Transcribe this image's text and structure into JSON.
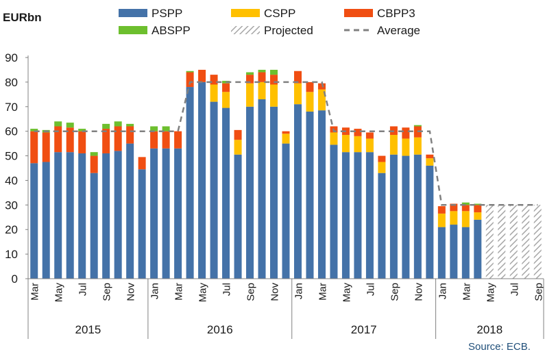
{
  "chart_data": {
    "type": "bar",
    "stacked": true,
    "unit_label": "EURbn",
    "source": "Source: ECB.",
    "ylim": [
      0,
      90
    ],
    "yticks": [
      0,
      10,
      20,
      30,
      40,
      50,
      60,
      70,
      80,
      90
    ],
    "grid": false,
    "legend_position": "top",
    "colors": {
      "PSPP": "#4472a8",
      "CSPP": "#ffc000",
      "CBPP3": "#f04e12",
      "ABSPP": "#6dbf2e",
      "Projected": "#a6a6a6",
      "Average": "#808080"
    },
    "legend": [
      {
        "key": "PSPP",
        "label": "PSPP",
        "kind": "solid"
      },
      {
        "key": "CSPP",
        "label": "CSPP",
        "kind": "solid"
      },
      {
        "key": "CBPP3",
        "label": "CBPP3",
        "kind": "solid"
      },
      {
        "key": "ABSPP",
        "label": "ABSPP",
        "kind": "solid"
      },
      {
        "key": "Projected",
        "label": "Projected",
        "kind": "hatch"
      },
      {
        "key": "Average",
        "label": "Average",
        "kind": "dash"
      }
    ],
    "categories": [
      "Mar",
      "Apr",
      "May",
      "Jun",
      "Jul",
      "Aug",
      "Sep",
      "Oct",
      "Nov",
      "Dec",
      "Jan",
      "Feb",
      "Mar",
      "Apr",
      "May",
      "Jun",
      "Jul",
      "Aug",
      "Sep",
      "Oct",
      "Nov",
      "Dec",
      "Jan",
      "Feb",
      "Mar",
      "Apr",
      "May",
      "Jun",
      "Jul",
      "Aug",
      "Sep",
      "Oct",
      "Nov",
      "Dec",
      "Jan",
      "Feb",
      "Mar",
      "Apr",
      "May",
      "Jun",
      "Jul",
      "Aug",
      "Sep"
    ],
    "tick_labels": [
      "Mar",
      "",
      "May",
      "",
      "Jul",
      "",
      "Sep",
      "",
      "Nov",
      "",
      "Jan",
      "",
      "Mar",
      "",
      "May",
      "",
      "Jul",
      "",
      "Sep",
      "",
      "Nov",
      "",
      "Jan",
      "",
      "Mar",
      "",
      "May",
      "",
      "Jul",
      "",
      "Sep",
      "",
      "Nov",
      "",
      "Jan",
      "",
      "Mar",
      "",
      "May",
      "",
      "Jul",
      "",
      "Sep"
    ],
    "years": [
      {
        "label": "2015",
        "start": 0,
        "end": 9
      },
      {
        "label": "2016",
        "start": 10,
        "end": 21
      },
      {
        "label": "2017",
        "start": 22,
        "end": 33
      },
      {
        "label": "2018",
        "start": 34,
        "end": 42
      }
    ],
    "series": [
      {
        "name": "PSPP",
        "values": [
          47,
          47.5,
          51.5,
          51.5,
          51,
          43,
          51,
          52,
          55,
          44.5,
          53,
          53,
          53,
          78,
          80,
          72,
          69.5,
          50.5,
          70,
          73,
          70,
          55,
          71,
          68,
          68.5,
          54.5,
          51.5,
          51.5,
          51.5,
          43,
          50.5,
          50,
          50.5,
          46,
          21,
          22,
          21,
          24,
          0,
          0,
          0,
          0,
          0
        ]
      },
      {
        "name": "CSPP",
        "values": [
          0,
          0,
          0,
          0,
          0,
          0,
          0,
          0,
          0,
          0,
          0,
          0,
          0,
          0,
          0,
          7,
          6.5,
          6,
          9.5,
          7,
          9,
          4,
          8.5,
          8,
          8.5,
          5,
          7,
          6.5,
          5.5,
          4.5,
          8,
          7,
          7,
          3,
          5.5,
          5.5,
          6.5,
          3,
          0,
          0,
          0,
          0,
          0
        ]
      },
      {
        "name": "CBPP3",
        "values": [
          13,
          12,
          10.5,
          10,
          9,
          7,
          10,
          10,
          7,
          5,
          7,
          7,
          7,
          6,
          5,
          4,
          3.5,
          4,
          3.5,
          4,
          4,
          1,
          5,
          4,
          2.5,
          2.5,
          3,
          3,
          2.5,
          2.5,
          3.5,
          4.5,
          4.5,
          1.5,
          3,
          3,
          2.5,
          3,
          0,
          0,
          0,
          0,
          0
        ]
      },
      {
        "name": "ABSPP",
        "values": [
          1,
          1,
          2,
          2,
          1,
          1.5,
          2,
          2,
          1,
          0,
          2,
          2,
          0,
          0.5,
          0,
          0,
          1,
          0,
          1,
          1,
          2,
          0,
          0,
          0,
          0,
          0,
          0,
          0,
          0,
          0,
          0,
          0,
          0.5,
          0,
          0,
          0,
          1,
          0.5,
          0,
          0,
          0,
          0,
          0
        ]
      },
      {
        "name": "Projected",
        "values": [
          0,
          0,
          0,
          0,
          0,
          0,
          0,
          0,
          0,
          0,
          0,
          0,
          0,
          0,
          0,
          0,
          0,
          0,
          0,
          0,
          0,
          0,
          0,
          0,
          0,
          0,
          0,
          0,
          0,
          0,
          0,
          0,
          0,
          0,
          0,
          0,
          0,
          0,
          30,
          30,
          30,
          30,
          30
        ]
      }
    ],
    "average": [
      {
        "x": 0,
        "y": 60
      },
      {
        "x": 12,
        "y": 60
      },
      {
        "x": 13,
        "y": 80
      },
      {
        "x": 24,
        "y": 80
      },
      {
        "x": 25,
        "y": 60
      },
      {
        "x": 33,
        "y": 60
      },
      {
        "x": 34,
        "y": 30
      },
      {
        "x": 42,
        "y": 30
      }
    ]
  }
}
